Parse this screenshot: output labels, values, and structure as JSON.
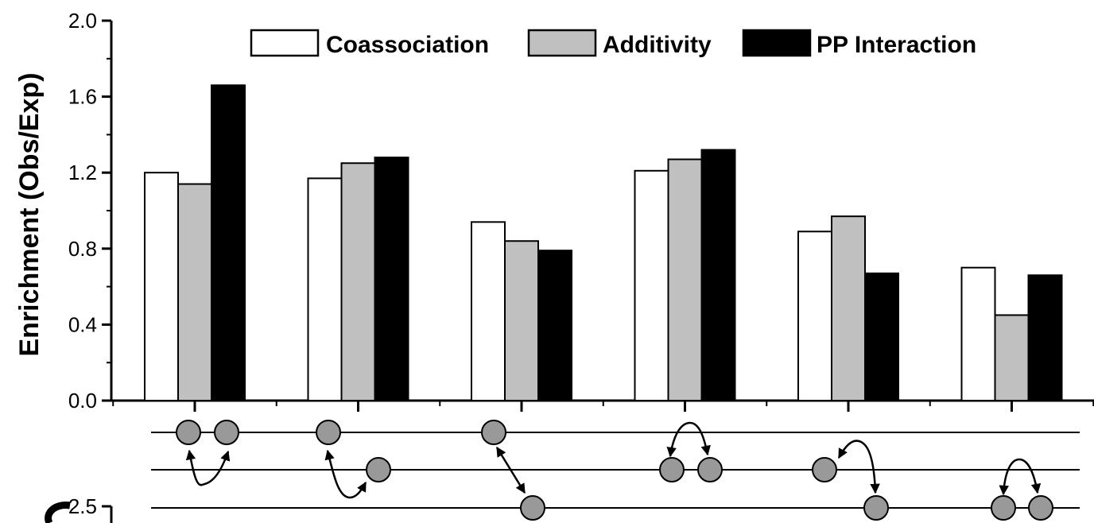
{
  "chart_data": {
    "type": "bar",
    "title": "",
    "xlabel": "",
    "ylabel": "Enrichment (Obs/Exp)",
    "ylim": [
      0.0,
      2.0
    ],
    "yticks": [
      "0.0",
      "0.4",
      "0.8",
      "1.2",
      "1.6",
      "2.0"
    ],
    "grid": false,
    "legend_position": "top",
    "categories": [
      "",
      "",
      "",
      "",
      "",
      ""
    ],
    "series": [
      {
        "name": "Coassociation",
        "color": "#ffffff",
        "values": [
          1.2,
          1.17,
          0.94,
          1.21,
          0.89,
          0.7
        ]
      },
      {
        "name": "Additivity",
        "color": "#c0c0c0",
        "values": [
          1.14,
          1.25,
          0.84,
          1.27,
          0.97,
          0.45
        ]
      },
      {
        "name": "PP Interaction",
        "color": "#000000",
        "values": [
          1.66,
          1.28,
          0.79,
          1.32,
          0.67,
          0.66
        ]
      }
    ],
    "lower_panel": {
      "visible_tick_label": "2.5",
      "node_color": "#999999",
      "lines": 3,
      "diagrams": 6
    }
  }
}
